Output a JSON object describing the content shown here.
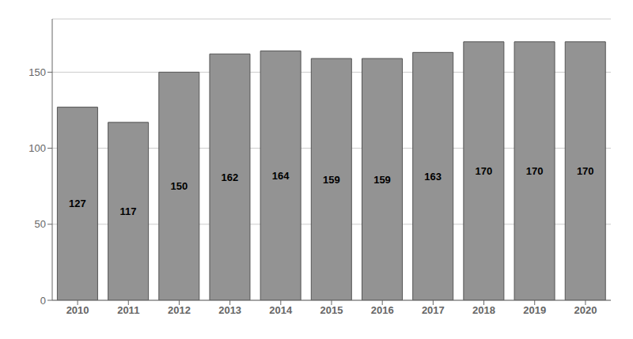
{
  "chart_data": {
    "type": "bar",
    "categories": [
      "2010",
      "2011",
      "2012",
      "2013",
      "2014",
      "2015",
      "2016",
      "2017",
      "2018",
      "2019",
      "2020"
    ],
    "values": [
      127,
      117,
      150,
      162,
      164,
      159,
      159,
      163,
      170,
      170,
      170
    ],
    "color": "#939393",
    "ylim": [
      0,
      185
    ],
    "yticks": [
      0,
      50,
      100,
      150
    ],
    "grid": true,
    "data_labels": true
  }
}
